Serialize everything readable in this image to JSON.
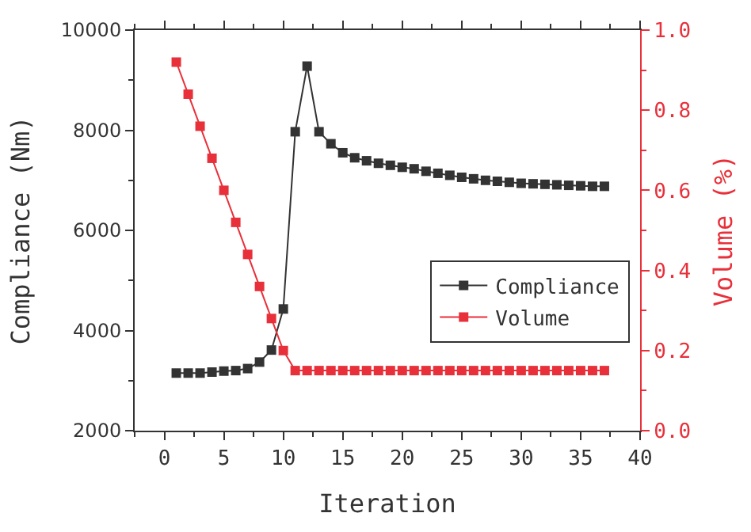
{
  "chart_data": {
    "type": "line",
    "xlabel": "Iteration",
    "ylabel": "Compliance (Nm)",
    "y2label": "Volume (%)",
    "x": [
      1,
      2,
      3,
      4,
      5,
      6,
      7,
      8,
      9,
      10,
      11,
      12,
      13,
      14,
      15,
      16,
      17,
      18,
      19,
      20,
      21,
      22,
      23,
      24,
      25,
      26,
      27,
      28,
      29,
      30,
      31,
      32,
      33,
      34,
      35,
      36,
      37
    ],
    "series": [
      {
        "name": "Compliance",
        "color": "#333333",
        "values": [
          3150,
          3150,
          3150,
          3170,
          3190,
          3200,
          3240,
          3370,
          3610,
          4430,
          7970,
          9280,
          7970,
          7730,
          7550,
          7450,
          7390,
          7340,
          7300,
          7260,
          7230,
          7180,
          7140,
          7100,
          7060,
          7030,
          7000,
          6980,
          6960,
          6940,
          6930,
          6920,
          6910,
          6900,
          6890,
          6880,
          6880
        ]
      },
      {
        "name": "Volume",
        "color": "#e8303a",
        "axis": "y2",
        "values": [
          0.92,
          0.84,
          0.76,
          0.68,
          0.6,
          0.52,
          0.44,
          0.36,
          0.28,
          0.2,
          0.15,
          0.15,
          0.15,
          0.15,
          0.15,
          0.15,
          0.15,
          0.15,
          0.15,
          0.15,
          0.15,
          0.15,
          0.15,
          0.15,
          0.15,
          0.15,
          0.15,
          0.15,
          0.15,
          0.15,
          0.15,
          0.15,
          0.15,
          0.15,
          0.15,
          0.15,
          0.15
        ]
      }
    ],
    "xlim": [
      -2.5,
      40
    ],
    "xticks": [
      0,
      5,
      10,
      15,
      20,
      25,
      30,
      35,
      40
    ],
    "ylim": [
      2000,
      10000
    ],
    "yticks": [
      2000,
      4000,
      6000,
      8000,
      10000
    ],
    "y2lim": [
      0,
      1
    ],
    "y2ticks": [
      {
        "value": 0,
        "label": "0.0"
      },
      {
        "value": 0.2,
        "label": "0.2"
      },
      {
        "value": 0.4,
        "label": "0.4"
      },
      {
        "value": 0.6,
        "label": "0.6"
      },
      {
        "value": 0.8,
        "label": "0.8"
      },
      {
        "value": 1,
        "label": "1.0"
      }
    ],
    "marker": "square",
    "line_style": "solid",
    "legend": "bottom right"
  }
}
